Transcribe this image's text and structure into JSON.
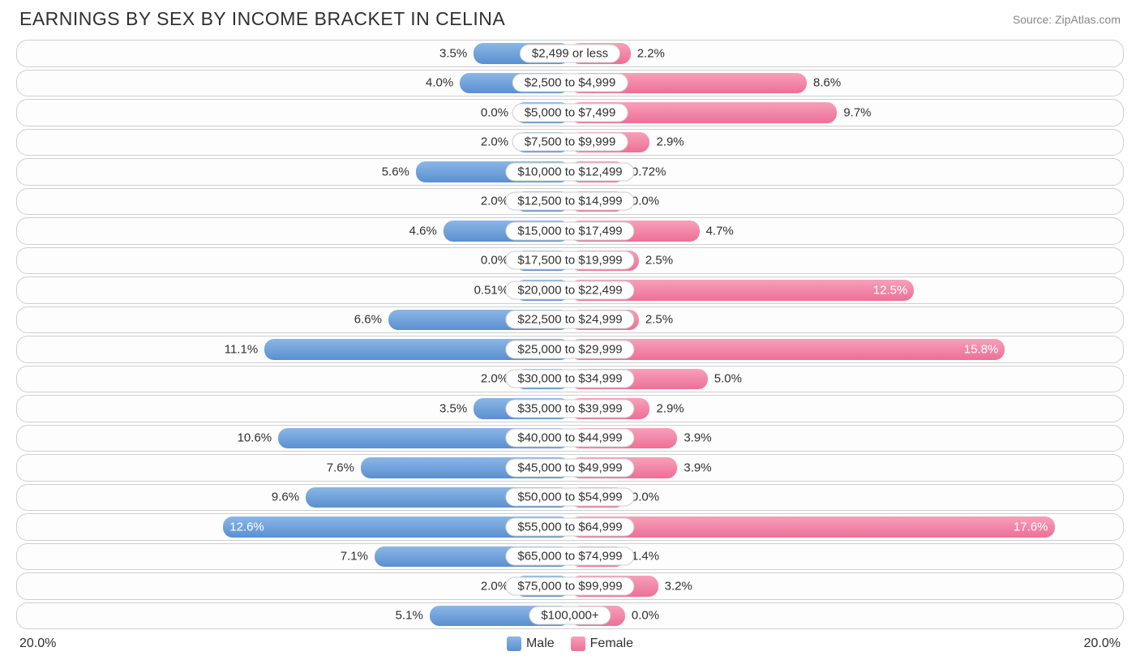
{
  "title": "EARNINGS BY SEX BY INCOME BRACKET IN CELINA",
  "source": "Source: ZipAtlas.com",
  "axis_max": 20.0,
  "axis_label_left": "20.0%",
  "axis_label_right": "20.0%",
  "legend": {
    "male": "Male",
    "female": "Female"
  },
  "colors": {
    "male_top": "#8bb7e6",
    "male_bottom": "#5a8fd0",
    "female_top": "#f7a0bb",
    "female_bottom": "#ed6f96",
    "border": "#cfcfcf",
    "text": "#303030",
    "text_inside": "#ffffff",
    "background": "#ffffff",
    "source_text": "#888888"
  },
  "label_inside_threshold": 12.0,
  "min_bar_pct": 2.0,
  "rows": [
    {
      "label": "$2,499 or less",
      "male": 3.5,
      "male_txt": "3.5%",
      "female": 2.2,
      "female_txt": "2.2%"
    },
    {
      "label": "$2,500 to $4,999",
      "male": 4.0,
      "male_txt": "4.0%",
      "female": 8.6,
      "female_txt": "8.6%"
    },
    {
      "label": "$5,000 to $7,499",
      "male": 0.0,
      "male_txt": "0.0%",
      "female": 9.7,
      "female_txt": "9.7%"
    },
    {
      "label": "$7,500 to $9,999",
      "male": 2.0,
      "male_txt": "2.0%",
      "female": 2.9,
      "female_txt": "2.9%"
    },
    {
      "label": "$10,000 to $12,499",
      "male": 5.6,
      "male_txt": "5.6%",
      "female": 0.72,
      "female_txt": "0.72%"
    },
    {
      "label": "$12,500 to $14,999",
      "male": 2.0,
      "male_txt": "2.0%",
      "female": 0.0,
      "female_txt": "0.0%"
    },
    {
      "label": "$15,000 to $17,499",
      "male": 4.6,
      "male_txt": "4.6%",
      "female": 4.7,
      "female_txt": "4.7%"
    },
    {
      "label": "$17,500 to $19,999",
      "male": 0.0,
      "male_txt": "0.0%",
      "female": 2.5,
      "female_txt": "2.5%"
    },
    {
      "label": "$20,000 to $22,499",
      "male": 0.51,
      "male_txt": "0.51%",
      "female": 12.5,
      "female_txt": "12.5%"
    },
    {
      "label": "$22,500 to $24,999",
      "male": 6.6,
      "male_txt": "6.6%",
      "female": 2.5,
      "female_txt": "2.5%"
    },
    {
      "label": "$25,000 to $29,999",
      "male": 11.1,
      "male_txt": "11.1%",
      "female": 15.8,
      "female_txt": "15.8%"
    },
    {
      "label": "$30,000 to $34,999",
      "male": 2.0,
      "male_txt": "2.0%",
      "female": 5.0,
      "female_txt": "5.0%"
    },
    {
      "label": "$35,000 to $39,999",
      "male": 3.5,
      "male_txt": "3.5%",
      "female": 2.9,
      "female_txt": "2.9%"
    },
    {
      "label": "$40,000 to $44,999",
      "male": 10.6,
      "male_txt": "10.6%",
      "female": 3.9,
      "female_txt": "3.9%"
    },
    {
      "label": "$45,000 to $49,999",
      "male": 7.6,
      "male_txt": "7.6%",
      "female": 3.9,
      "female_txt": "3.9%"
    },
    {
      "label": "$50,000 to $54,999",
      "male": 9.6,
      "male_txt": "9.6%",
      "female": 0.0,
      "female_txt": "0.0%"
    },
    {
      "label": "$55,000 to $64,999",
      "male": 12.6,
      "male_txt": "12.6%",
      "female": 17.6,
      "female_txt": "17.6%"
    },
    {
      "label": "$65,000 to $74,999",
      "male": 7.1,
      "male_txt": "7.1%",
      "female": 1.4,
      "female_txt": "1.4%"
    },
    {
      "label": "$75,000 to $99,999",
      "male": 2.0,
      "male_txt": "2.0%",
      "female": 3.2,
      "female_txt": "3.2%"
    },
    {
      "label": "$100,000+",
      "male": 5.1,
      "male_txt": "5.1%",
      "female": 0.0,
      "female_txt": "0.0%"
    }
  ]
}
